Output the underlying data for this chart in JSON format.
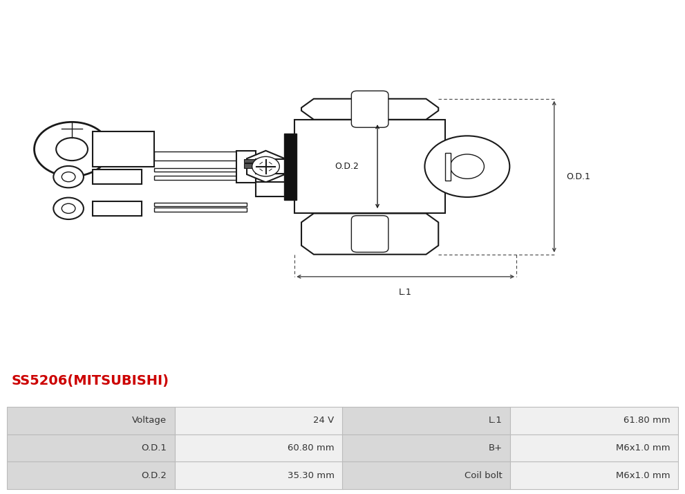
{
  "title": "SS5206(MITSUBISHI)",
  "title_color": "#cc0000",
  "bg_color": "#ffffff",
  "table_data": [
    [
      "Voltage",
      "24 V",
      "L.1",
      "61.80 mm"
    ],
    [
      "O.D.1",
      "60.80 mm",
      "B+",
      "M6x1.0 mm"
    ],
    [
      "O.D.2",
      "35.30 mm",
      "Coil bolt",
      "M6x1.0 mm"
    ]
  ],
  "drawing_line_color": "#1a1a1a",
  "dim_line_color": "#444444",
  "table_label_bg": "#d8d8d8",
  "table_value_bg": "#f0f0f0",
  "table_border": "#bbbbbb"
}
